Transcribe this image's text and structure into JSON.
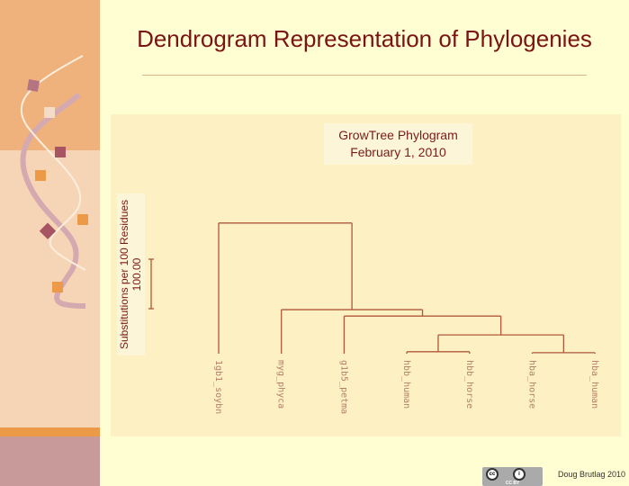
{
  "slide": {
    "title": "Dendrogram Representation of Phylogenies",
    "credit": "Doug Brutlag 2010",
    "license_badge": "CC BY"
  },
  "diagram": {
    "title_line1": "GrowTree Phylogram",
    "title_line2": "February 1, 2010",
    "scale_label": "Substitutions per 100 Residues",
    "scale_value": "100.00",
    "scale_length": 100,
    "line_color": "#b0583a",
    "leaves": [
      "1gb1_soybn",
      "myg_phyca",
      "g1b5_petma",
      "hbb_human",
      "hbb_horse",
      "hba_horse",
      "hba_human"
    ],
    "tree": {
      "h": 264,
      "c": [
        {
          "leaf": 0
        },
        {
          "h": 89,
          "c": [
            {
              "leaf": 1
            },
            {
              "h": 76,
              "c": [
                {
                  "leaf": 2
                },
                {
                  "h": 38,
                  "c": [
                    {
                      "h": 4,
                      "c": [
                        {
                          "leaf": 3
                        },
                        {
                          "leaf": 4
                        }
                      ]
                    },
                    {
                      "h": 2,
                      "c": [
                        {
                          "leaf": 5
                        },
                        {
                          "leaf": 6
                        }
                      ]
                    }
                  ]
                }
              ]
            }
          ]
        }
      ]
    }
  }
}
